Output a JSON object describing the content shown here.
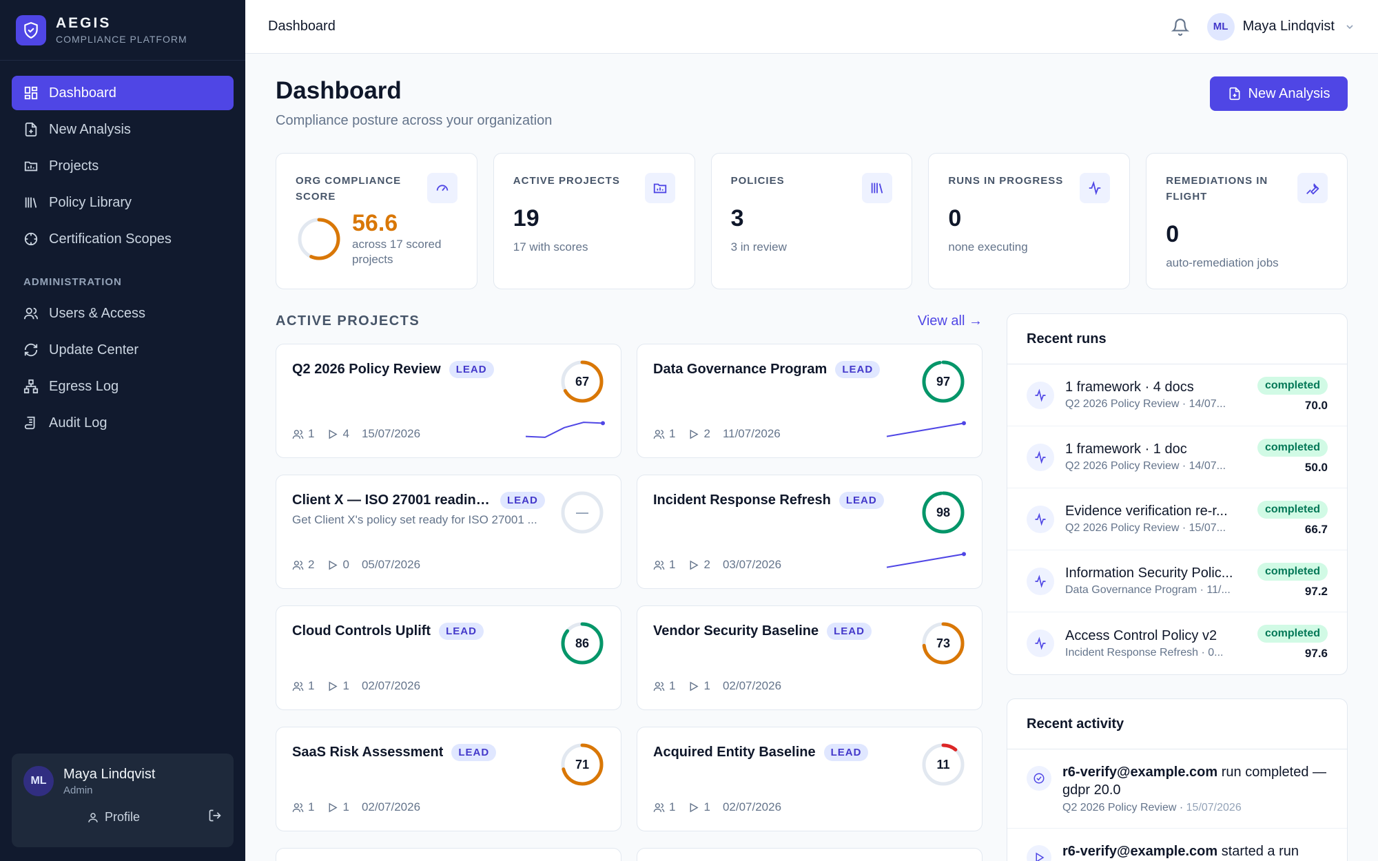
{
  "brand": {
    "name": "AEGIS",
    "subtitle": "COMPLIANCE PLATFORM"
  },
  "sidebar": {
    "items": [
      {
        "label": "Dashboard",
        "icon": "dashboard-icon",
        "active": true
      },
      {
        "label": "New Analysis",
        "icon": "file-plus-icon"
      },
      {
        "label": "Projects",
        "icon": "folder-chart-icon"
      },
      {
        "label": "Policy Library",
        "icon": "library-icon"
      },
      {
        "label": "Certification Scopes",
        "icon": "target-icon"
      }
    ],
    "admin_label": "ADMINISTRATION",
    "admin_items": [
      {
        "label": "Users & Access",
        "icon": "users-icon"
      },
      {
        "label": "Update Center",
        "icon": "refresh-icon"
      },
      {
        "label": "Egress Log",
        "icon": "network-icon"
      },
      {
        "label": "Audit Log",
        "icon": "scroll-icon"
      }
    ],
    "user": {
      "initials": "ML",
      "name": "Maya Lindqvist",
      "role": "Admin",
      "profile_label": "Profile"
    }
  },
  "topbar": {
    "title": "Dashboard",
    "user_initials": "ML",
    "user_name": "Maya Lindqvist"
  },
  "page": {
    "title": "Dashboard",
    "subtitle": "Compliance posture across your organization",
    "new_analysis_label": "New Analysis"
  },
  "stats": {
    "score": {
      "label": "ORG COMPLIANCE SCORE",
      "value": "56.6",
      "sub": "across 17 scored projects",
      "fraction": 0.566
    },
    "active": {
      "label": "ACTIVE PROJECTS",
      "value": "19",
      "sub": "17 with scores"
    },
    "policies": {
      "label": "POLICIES",
      "value": "3",
      "sub": "3 in review"
    },
    "runs": {
      "label": "RUNS IN PROGRESS",
      "value": "0",
      "sub": "none executing"
    },
    "remediations": {
      "label": "REMEDIATIONS IN FLIGHT",
      "value": "0",
      "sub": "auto-remediation jobs"
    }
  },
  "projects_section": {
    "title": "ACTIVE PROJECTS",
    "view_all": "View all →"
  },
  "projects": [
    {
      "name": "Q2 2026 Policy Review",
      "badge": "LEAD",
      "desc": "",
      "score": "67",
      "score_value": 67,
      "color": "#d97706",
      "members": "1",
      "runs": "4",
      "date": "15/07/2026",
      "trend": [
        40,
        38,
        60,
        72,
        70
      ]
    },
    {
      "name": "Data Governance Program",
      "badge": "LEAD",
      "desc": "",
      "score": "97",
      "score_value": 97,
      "color": "#059669",
      "members": "1",
      "runs": "2",
      "date": "11/07/2026",
      "trend": [
        40,
        70
      ]
    },
    {
      "name": "Client X — ISO 27001 readine...",
      "badge": "LEAD",
      "desc": "Get Client X's policy set ready for ISO 27001 ...",
      "score": "—",
      "score_value": null,
      "color": "#cbd5e1",
      "members": "2",
      "runs": "0",
      "date": "05/07/2026",
      "trend": []
    },
    {
      "name": "Incident Response Refresh",
      "badge": "LEAD",
      "desc": "",
      "score": "98",
      "score_value": 98,
      "color": "#059669",
      "members": "1",
      "runs": "2",
      "date": "03/07/2026",
      "trend": [
        40,
        70
      ]
    },
    {
      "name": "Cloud Controls Uplift",
      "badge": "LEAD",
      "desc": "",
      "score": "86",
      "score_value": 86,
      "color": "#059669",
      "members": "1",
      "runs": "1",
      "date": "02/07/2026",
      "trend": []
    },
    {
      "name": "Vendor Security Baseline",
      "badge": "LEAD",
      "desc": "",
      "score": "73",
      "score_value": 73,
      "color": "#d97706",
      "members": "1",
      "runs": "1",
      "date": "02/07/2026",
      "trend": []
    },
    {
      "name": "SaaS Risk Assessment",
      "badge": "LEAD",
      "desc": "",
      "score": "71",
      "score_value": 71,
      "color": "#d97706",
      "members": "1",
      "runs": "1",
      "date": "02/07/2026",
      "trend": []
    },
    {
      "name": "Acquired Entity Baseline",
      "badge": "LEAD",
      "desc": "",
      "score": "11",
      "score_value": 11,
      "color": "#dc2626",
      "members": "1",
      "runs": "1",
      "date": "02/07/2026",
      "trend": []
    }
  ],
  "recent_runs": {
    "title": "Recent runs",
    "items": [
      {
        "title": "1 framework · 4 docs",
        "sub": "Q2 2026 Policy Review · 14/07...",
        "status": "completed",
        "score": "70.0"
      },
      {
        "title": "1 framework · 1 doc",
        "sub": "Q2 2026 Policy Review · 14/07...",
        "status": "completed",
        "score": "50.0"
      },
      {
        "title": "Evidence verification re-r...",
        "sub": "Q2 2026 Policy Review · 15/07...",
        "status": "completed",
        "score": "66.7"
      },
      {
        "title": "Information Security Polic...",
        "sub": "Data Governance Program · 11/...",
        "status": "completed",
        "score": "97.2"
      },
      {
        "title": "Access Control Policy v2",
        "sub": "Incident Response Refresh · 0...",
        "status": "completed",
        "score": "97.6"
      }
    ]
  },
  "recent_activity": {
    "title": "Recent activity",
    "items": [
      {
        "actor": "r6-verify@example.com",
        "action": " run completed — gdpr 20.0",
        "project": "Q2 2026 Policy Review · ",
        "date": "15/07/2026"
      },
      {
        "actor": "r6-verify@example.com",
        "action": " started a run",
        "project": "",
        "date": ""
      }
    ]
  },
  "colors": {
    "accent": "#4f46e5",
    "sidebar_bg": "#111a2e",
    "success": "#059669",
    "warning": "#d97706",
    "danger": "#dc2626"
  }
}
